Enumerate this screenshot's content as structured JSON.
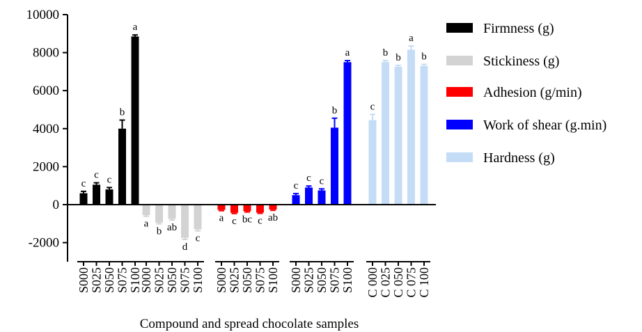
{
  "chart_data": {
    "type": "bar",
    "xlabel": "Compound and spread chocolate samples",
    "ylabel": "",
    "ylim": [
      -3000,
      10000
    ],
    "yticks": [
      -2000,
      0,
      2000,
      4000,
      6000,
      8000,
      10000
    ],
    "legend_position": "right",
    "grid": false,
    "series": [
      {
        "name": "Firmness (g)",
        "color": "#000000",
        "categories": [
          "S000",
          "S025",
          "S050",
          "S075",
          "S100"
        ],
        "values": [
          600,
          1050,
          800,
          4000,
          8850
        ],
        "errors": [
          100,
          100,
          100,
          450,
          80
        ],
        "letters": [
          "c",
          "c",
          "c",
          "b",
          "a"
        ]
      },
      {
        "name": "Stickiness (g)",
        "color": "#d3d3d3",
        "categories": [
          "S000",
          "S025",
          "S050",
          "S075",
          "S100"
        ],
        "values": [
          -550,
          -950,
          -750,
          -1750,
          -1300
        ],
        "errors": [
          60,
          60,
          60,
          80,
          80
        ],
        "letters": [
          "a",
          "b",
          "ab",
          "d",
          "c"
        ]
      },
      {
        "name": "Adhesion (g/min)",
        "color": "#ff0000",
        "categories": [
          "S000",
          "S025",
          "S050",
          "S075",
          "S100"
        ],
        "values": [
          -280,
          -430,
          -350,
          -420,
          -260
        ],
        "errors": [
          40,
          40,
          40,
          40,
          40
        ],
        "letters": [
          "a",
          "c",
          "bc",
          "c",
          "ab"
        ]
      },
      {
        "name": "Work of shear (g.min)",
        "color": "#0000ff",
        "categories": [
          "S000",
          "S025",
          "S050",
          "S075",
          "S100"
        ],
        "values": [
          500,
          900,
          750,
          4050,
          7500
        ],
        "errors": [
          80,
          80,
          80,
          500,
          80
        ],
        "letters": [
          "c",
          "c",
          "c",
          "b",
          "a"
        ]
      },
      {
        "name": "Hardness (g)",
        "color": "#c5dcf6",
        "categories": [
          "C 000",
          "C 025",
          "C 050",
          "C 075",
          "C 100"
        ],
        "values": [
          4450,
          7500,
          7250,
          8150,
          7300
        ],
        "errors": [
          300,
          80,
          80,
          200,
          80
        ],
        "letters": [
          "c",
          "b",
          "b",
          "a",
          "b"
        ]
      }
    ]
  }
}
